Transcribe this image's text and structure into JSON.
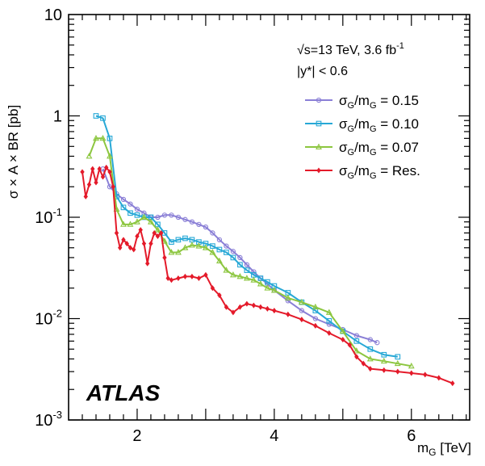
{
  "chart_data": {
    "type": "line",
    "title": "",
    "xlabel": "m_G [TeV]",
    "ylabel": "σ × A × BR [pb]",
    "xlim": [
      1.0,
      6.85
    ],
    "ylim": [
      0.001,
      10
    ],
    "yscale": "log",
    "x_ticks": [
      2,
      4,
      6
    ],
    "y_ticks": [
      {
        "value": 0.001,
        "mant": "10",
        "exp": "-3"
      },
      {
        "value": 0.01,
        "mant": "10",
        "exp": "-2"
      },
      {
        "value": 0.1,
        "mant": "10",
        "exp": "-1"
      },
      {
        "value": 1,
        "label": "1"
      },
      {
        "value": 10,
        "label": "10"
      }
    ],
    "annotations": {
      "energy": "√s=13 TeV, 3.6 fb",
      "energy_sup": "-1",
      "rapidity": "|y*| < 0.6",
      "experiment": "ATLAS"
    },
    "legend_position": "top-right",
    "series": [
      {
        "name": "σG/mG = 0.15",
        "legend": {
          "main": "σ",
          "sub1": "G",
          "mid": "/m",
          "sub2": "G",
          "rest": " = 0.15"
        },
        "color": "#8a7fd6",
        "marker": "circle",
        "x": [
          1.5,
          1.6,
          1.7,
          1.8,
          1.9,
          2.0,
          2.1,
          2.2,
          2.3,
          2.4,
          2.5,
          2.6,
          2.7,
          2.8,
          2.9,
          3.0,
          3.1,
          3.2,
          3.3,
          3.4,
          3.5,
          3.6,
          3.7,
          3.8,
          3.9,
          4.0,
          4.2,
          4.4,
          4.6,
          4.8,
          5.0,
          5.2,
          5.4,
          5.5
        ],
        "y": [
          0.3,
          0.2,
          0.17,
          0.15,
          0.135,
          0.12,
          0.11,
          0.1,
          0.1,
          0.105,
          0.105,
          0.1,
          0.095,
          0.09,
          0.085,
          0.08,
          0.07,
          0.06,
          0.052,
          0.046,
          0.04,
          0.034,
          0.029,
          0.025,
          0.022,
          0.019,
          0.015,
          0.012,
          0.01,
          0.0088,
          0.0078,
          0.0068,
          0.0062,
          0.0058
        ]
      },
      {
        "name": "σG/mG = 0.10",
        "legend": {
          "main": "σ",
          "sub1": "G",
          "mid": "/m",
          "sub2": "G",
          "rest": " = 0.10"
        },
        "color": "#27a8d6",
        "marker": "square",
        "x": [
          1.4,
          1.5,
          1.6,
          1.7,
          1.8,
          1.9,
          2.0,
          2.1,
          2.2,
          2.3,
          2.4,
          2.5,
          2.6,
          2.7,
          2.8,
          2.9,
          3.0,
          3.1,
          3.2,
          3.3,
          3.4,
          3.5,
          3.6,
          3.7,
          3.8,
          3.9,
          4.0,
          4.2,
          4.4,
          4.6,
          4.8,
          5.0,
          5.2,
          5.4,
          5.6,
          5.8
        ],
        "y": [
          1.0,
          0.95,
          0.6,
          0.16,
          0.125,
          0.11,
          0.105,
          0.1,
          0.1,
          0.085,
          0.07,
          0.057,
          0.06,
          0.062,
          0.06,
          0.057,
          0.055,
          0.052,
          0.048,
          0.045,
          0.04,
          0.034,
          0.03,
          0.027,
          0.025,
          0.023,
          0.021,
          0.018,
          0.0145,
          0.012,
          0.0095,
          0.0075,
          0.006,
          0.005,
          0.0044,
          0.0042
        ]
      },
      {
        "name": "σG/mG = 0.07",
        "legend": {
          "main": "σ",
          "sub1": "G",
          "mid": "/m",
          "sub2": "G",
          "rest": " = 0.07"
        },
        "color": "#8cc63f",
        "marker": "triangle",
        "x": [
          1.3,
          1.4,
          1.5,
          1.6,
          1.7,
          1.8,
          1.9,
          2.0,
          2.1,
          2.2,
          2.3,
          2.4,
          2.5,
          2.6,
          2.7,
          2.8,
          2.9,
          3.0,
          3.1,
          3.2,
          3.3,
          3.4,
          3.5,
          3.6,
          3.7,
          3.8,
          3.9,
          4.0,
          4.2,
          4.4,
          4.6,
          4.8,
          5.0,
          5.2,
          5.4,
          5.6,
          5.8,
          6.0
        ],
        "y": [
          0.4,
          0.6,
          0.6,
          0.4,
          0.12,
          0.085,
          0.085,
          0.09,
          0.1,
          0.09,
          0.075,
          0.058,
          0.045,
          0.045,
          0.05,
          0.053,
          0.052,
          0.05,
          0.045,
          0.037,
          0.03,
          0.027,
          0.026,
          0.025,
          0.024,
          0.022,
          0.02,
          0.019,
          0.016,
          0.0145,
          0.013,
          0.0115,
          0.0075,
          0.0048,
          0.004,
          0.0038,
          0.0036,
          0.0034
        ]
      },
      {
        "name": "σG/mG = Res.",
        "legend": {
          "main": "σ",
          "sub1": "G",
          "mid": "/m",
          "sub2": "G",
          "rest": " = Res."
        },
        "color": "#e41a2a",
        "marker": "diamond",
        "x": [
          1.2,
          1.25,
          1.3,
          1.35,
          1.4,
          1.45,
          1.5,
          1.55,
          1.6,
          1.65,
          1.7,
          1.75,
          1.8,
          1.85,
          1.9,
          1.95,
          2.0,
          2.05,
          2.1,
          2.15,
          2.2,
          2.25,
          2.3,
          2.35,
          2.4,
          2.45,
          2.5,
          2.6,
          2.7,
          2.8,
          2.9,
          3.0,
          3.1,
          3.2,
          3.3,
          3.4,
          3.5,
          3.6,
          3.7,
          3.8,
          3.9,
          4.0,
          4.2,
          4.4,
          4.6,
          4.8,
          5.0,
          5.1,
          5.2,
          5.3,
          5.4,
          5.6,
          5.8,
          6.0,
          6.2,
          6.4,
          6.6
        ],
        "y": [
          0.28,
          0.16,
          0.21,
          0.3,
          0.22,
          0.3,
          0.25,
          0.31,
          0.28,
          0.2,
          0.07,
          0.05,
          0.06,
          0.055,
          0.05,
          0.048,
          0.065,
          0.075,
          0.055,
          0.035,
          0.055,
          0.07,
          0.065,
          0.07,
          0.04,
          0.025,
          0.024,
          0.025,
          0.026,
          0.026,
          0.025,
          0.027,
          0.02,
          0.017,
          0.013,
          0.0115,
          0.013,
          0.014,
          0.0135,
          0.013,
          0.0125,
          0.012,
          0.011,
          0.0098,
          0.0085,
          0.0072,
          0.0062,
          0.0055,
          0.0042,
          0.0036,
          0.0032,
          0.0031,
          0.003,
          0.0029,
          0.0028,
          0.0026,
          0.0023
        ]
      }
    ]
  }
}
